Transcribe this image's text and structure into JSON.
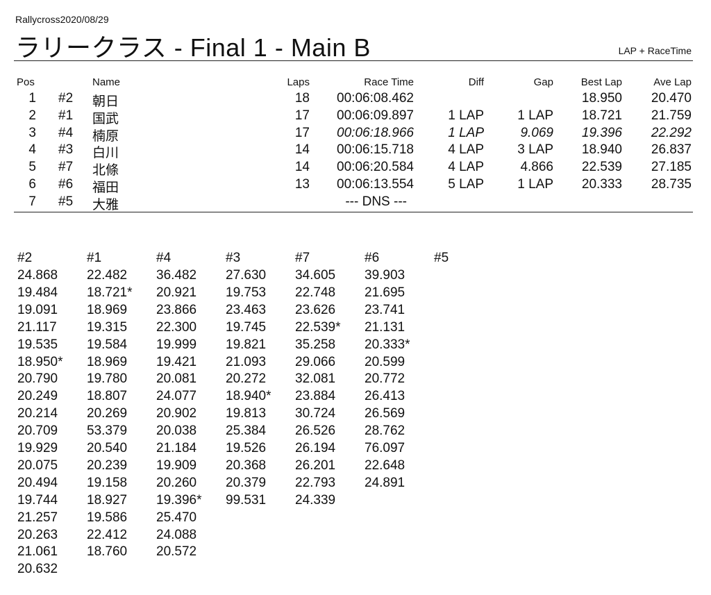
{
  "header": {
    "subtitle": "Rallycross2020/08/29",
    "title": "ラリークラス  -  Final 1  -  Main B",
    "mode": "LAP + RaceTime"
  },
  "results": {
    "columns": {
      "pos": "Pos",
      "name": "Name",
      "laps": "Laps",
      "race_time": "Race Time",
      "diff": "Diff",
      "gap": "Gap",
      "best_lap": "Best Lap",
      "ave_lap": "Ave Lap"
    },
    "rows": [
      {
        "pos": "1",
        "no": "#2",
        "name": "朝日",
        "laps": "18",
        "race_time": "00:06:08.462",
        "diff": "",
        "gap": "",
        "best_lap": "18.950",
        "ave_lap": "20.470"
      },
      {
        "pos": "2",
        "no": "#1",
        "name": "国武",
        "laps": "17",
        "race_time": "00:06:09.897",
        "diff": "1 LAP",
        "gap": "1 LAP",
        "best_lap": "18.721",
        "ave_lap": "21.759"
      },
      {
        "pos": "3",
        "no": "#4",
        "name": "楠原",
        "laps": "17",
        "race_time": "00:06:18.966",
        "diff": "1 LAP",
        "gap": "9.069",
        "best_lap": "19.396",
        "ave_lap": "22.292",
        "italic": true
      },
      {
        "pos": "4",
        "no": "#3",
        "name": "白川",
        "laps": "14",
        "race_time": "00:06:15.718",
        "diff": "4 LAP",
        "gap": "3 LAP",
        "best_lap": "18.940",
        "ave_lap": "26.837"
      },
      {
        "pos": "5",
        "no": "#7",
        "name": "北條",
        "laps": "14",
        "race_time": "00:06:20.584",
        "diff": "4 LAP",
        "gap": "4.866",
        "best_lap": "22.539",
        "ave_lap": "27.185"
      },
      {
        "pos": "6",
        "no": "#6",
        "name": "福田",
        "laps": "13",
        "race_time": "00:06:13.554",
        "diff": "5 LAP",
        "gap": "1 LAP",
        "best_lap": "20.333",
        "ave_lap": "28.735"
      },
      {
        "pos": "7",
        "no": "#5",
        "name": "大雅",
        "laps": "",
        "race_time": "--- DNS ---",
        "diff": "",
        "gap": "",
        "best_lap": "",
        "ave_lap": ""
      }
    ]
  },
  "lap_times": [
    {
      "car": "#2",
      "laps": [
        "24.868",
        "19.484",
        "19.091",
        "21.117",
        "19.535",
        "18.950*",
        "20.790",
        "20.249",
        "20.214",
        "20.709",
        "19.929",
        "20.075",
        "20.494",
        "19.744",
        "21.257",
        "20.263",
        "21.061",
        "20.632"
      ]
    },
    {
      "car": "#1",
      "laps": [
        "22.482",
        "18.721*",
        "18.969",
        "19.315",
        "19.584",
        "18.969",
        "19.780",
        "18.807",
        "20.269",
        "53.379",
        "20.540",
        "20.239",
        "19.158",
        "18.927",
        "19.586",
        "22.412",
        "18.760"
      ]
    },
    {
      "car": "#4",
      "laps": [
        "36.482",
        "20.921",
        "23.866",
        "22.300",
        "19.999",
        "19.421",
        "20.081",
        "24.077",
        "20.902",
        "20.038",
        "21.184",
        "19.909",
        "20.260",
        "19.396*",
        "25.470",
        "24.088",
        "20.572"
      ]
    },
    {
      "car": "#3",
      "laps": [
        "27.630",
        "19.753",
        "23.463",
        "19.745",
        "19.821",
        "21.093",
        "20.272",
        "18.940*",
        "19.813",
        "25.384",
        "19.526",
        "20.368",
        "20.379",
        "99.531"
      ]
    },
    {
      "car": "#7",
      "laps": [
        "34.605",
        "22.748",
        "23.626",
        "22.539*",
        "35.258",
        "29.066",
        "32.081",
        "23.884",
        "30.724",
        "26.526",
        "26.194",
        "26.201",
        "22.793",
        "24.339"
      ]
    },
    {
      "car": "#6",
      "laps": [
        "39.903",
        "21.695",
        "23.741",
        "21.131",
        "20.333*",
        "20.599",
        "20.772",
        "26.413",
        "26.569",
        "28.762",
        "76.097",
        "22.648",
        "24.891"
      ]
    },
    {
      "car": "#5",
      "laps": []
    }
  ]
}
